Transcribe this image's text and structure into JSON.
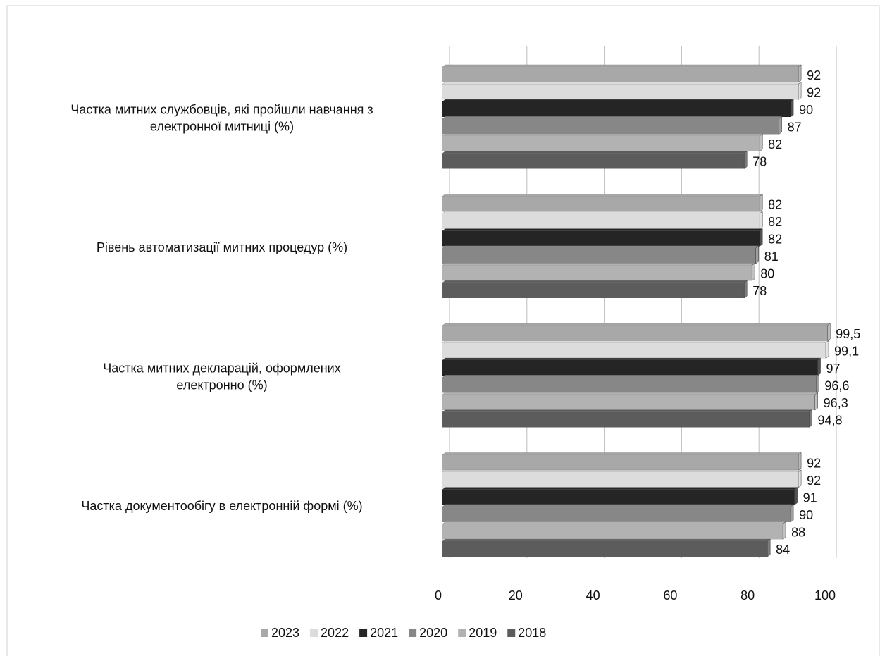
{
  "chart_data": {
    "type": "bar3d-horizontal",
    "categories": [
      "Частка митних службовців, які пройшли навчання з\nелектронної митниці (%)",
      "Рівень автоматизації митних процедур (%)",
      "Частка митних декларацій, оформлених\nелектронно (%)",
      "Частка документообігу в електронній формі (%)"
    ],
    "series": [
      {
        "name": "2023",
        "color": "#a8a8a8",
        "values": [
          92,
          82,
          99.5,
          92
        ],
        "value_labels": [
          "92",
          "82",
          "99,5",
          "92"
        ]
      },
      {
        "name": "2022",
        "color": "#dcdcdc",
        "values": [
          92,
          82,
          99.1,
          92
        ],
        "value_labels": [
          "92",
          "82",
          "99,1",
          "92"
        ]
      },
      {
        "name": "2021",
        "color": "#252525",
        "values": [
          90,
          82,
          97,
          91
        ],
        "value_labels": [
          "90",
          "82",
          "97",
          "91"
        ]
      },
      {
        "name": "2020",
        "color": "#878787",
        "values": [
          87,
          81,
          96.6,
          90
        ],
        "value_labels": [
          "87",
          "81",
          "96,6",
          "90"
        ]
      },
      {
        "name": "2019",
        "color": "#b2b2b2",
        "values": [
          82,
          80,
          96.3,
          88
        ],
        "value_labels": [
          "82",
          "80",
          "96,3",
          "88"
        ]
      },
      {
        "name": "2018",
        "color": "#5c5c5c",
        "values": [
          78,
          78,
          94.8,
          84
        ],
        "value_labels": [
          "78",
          "78",
          "94,8",
          "84"
        ]
      }
    ],
    "xlim": [
      0,
      100
    ],
    "xticks": [
      0,
      20,
      40,
      60,
      80,
      100
    ],
    "grid": true,
    "legend": "bottom"
  }
}
